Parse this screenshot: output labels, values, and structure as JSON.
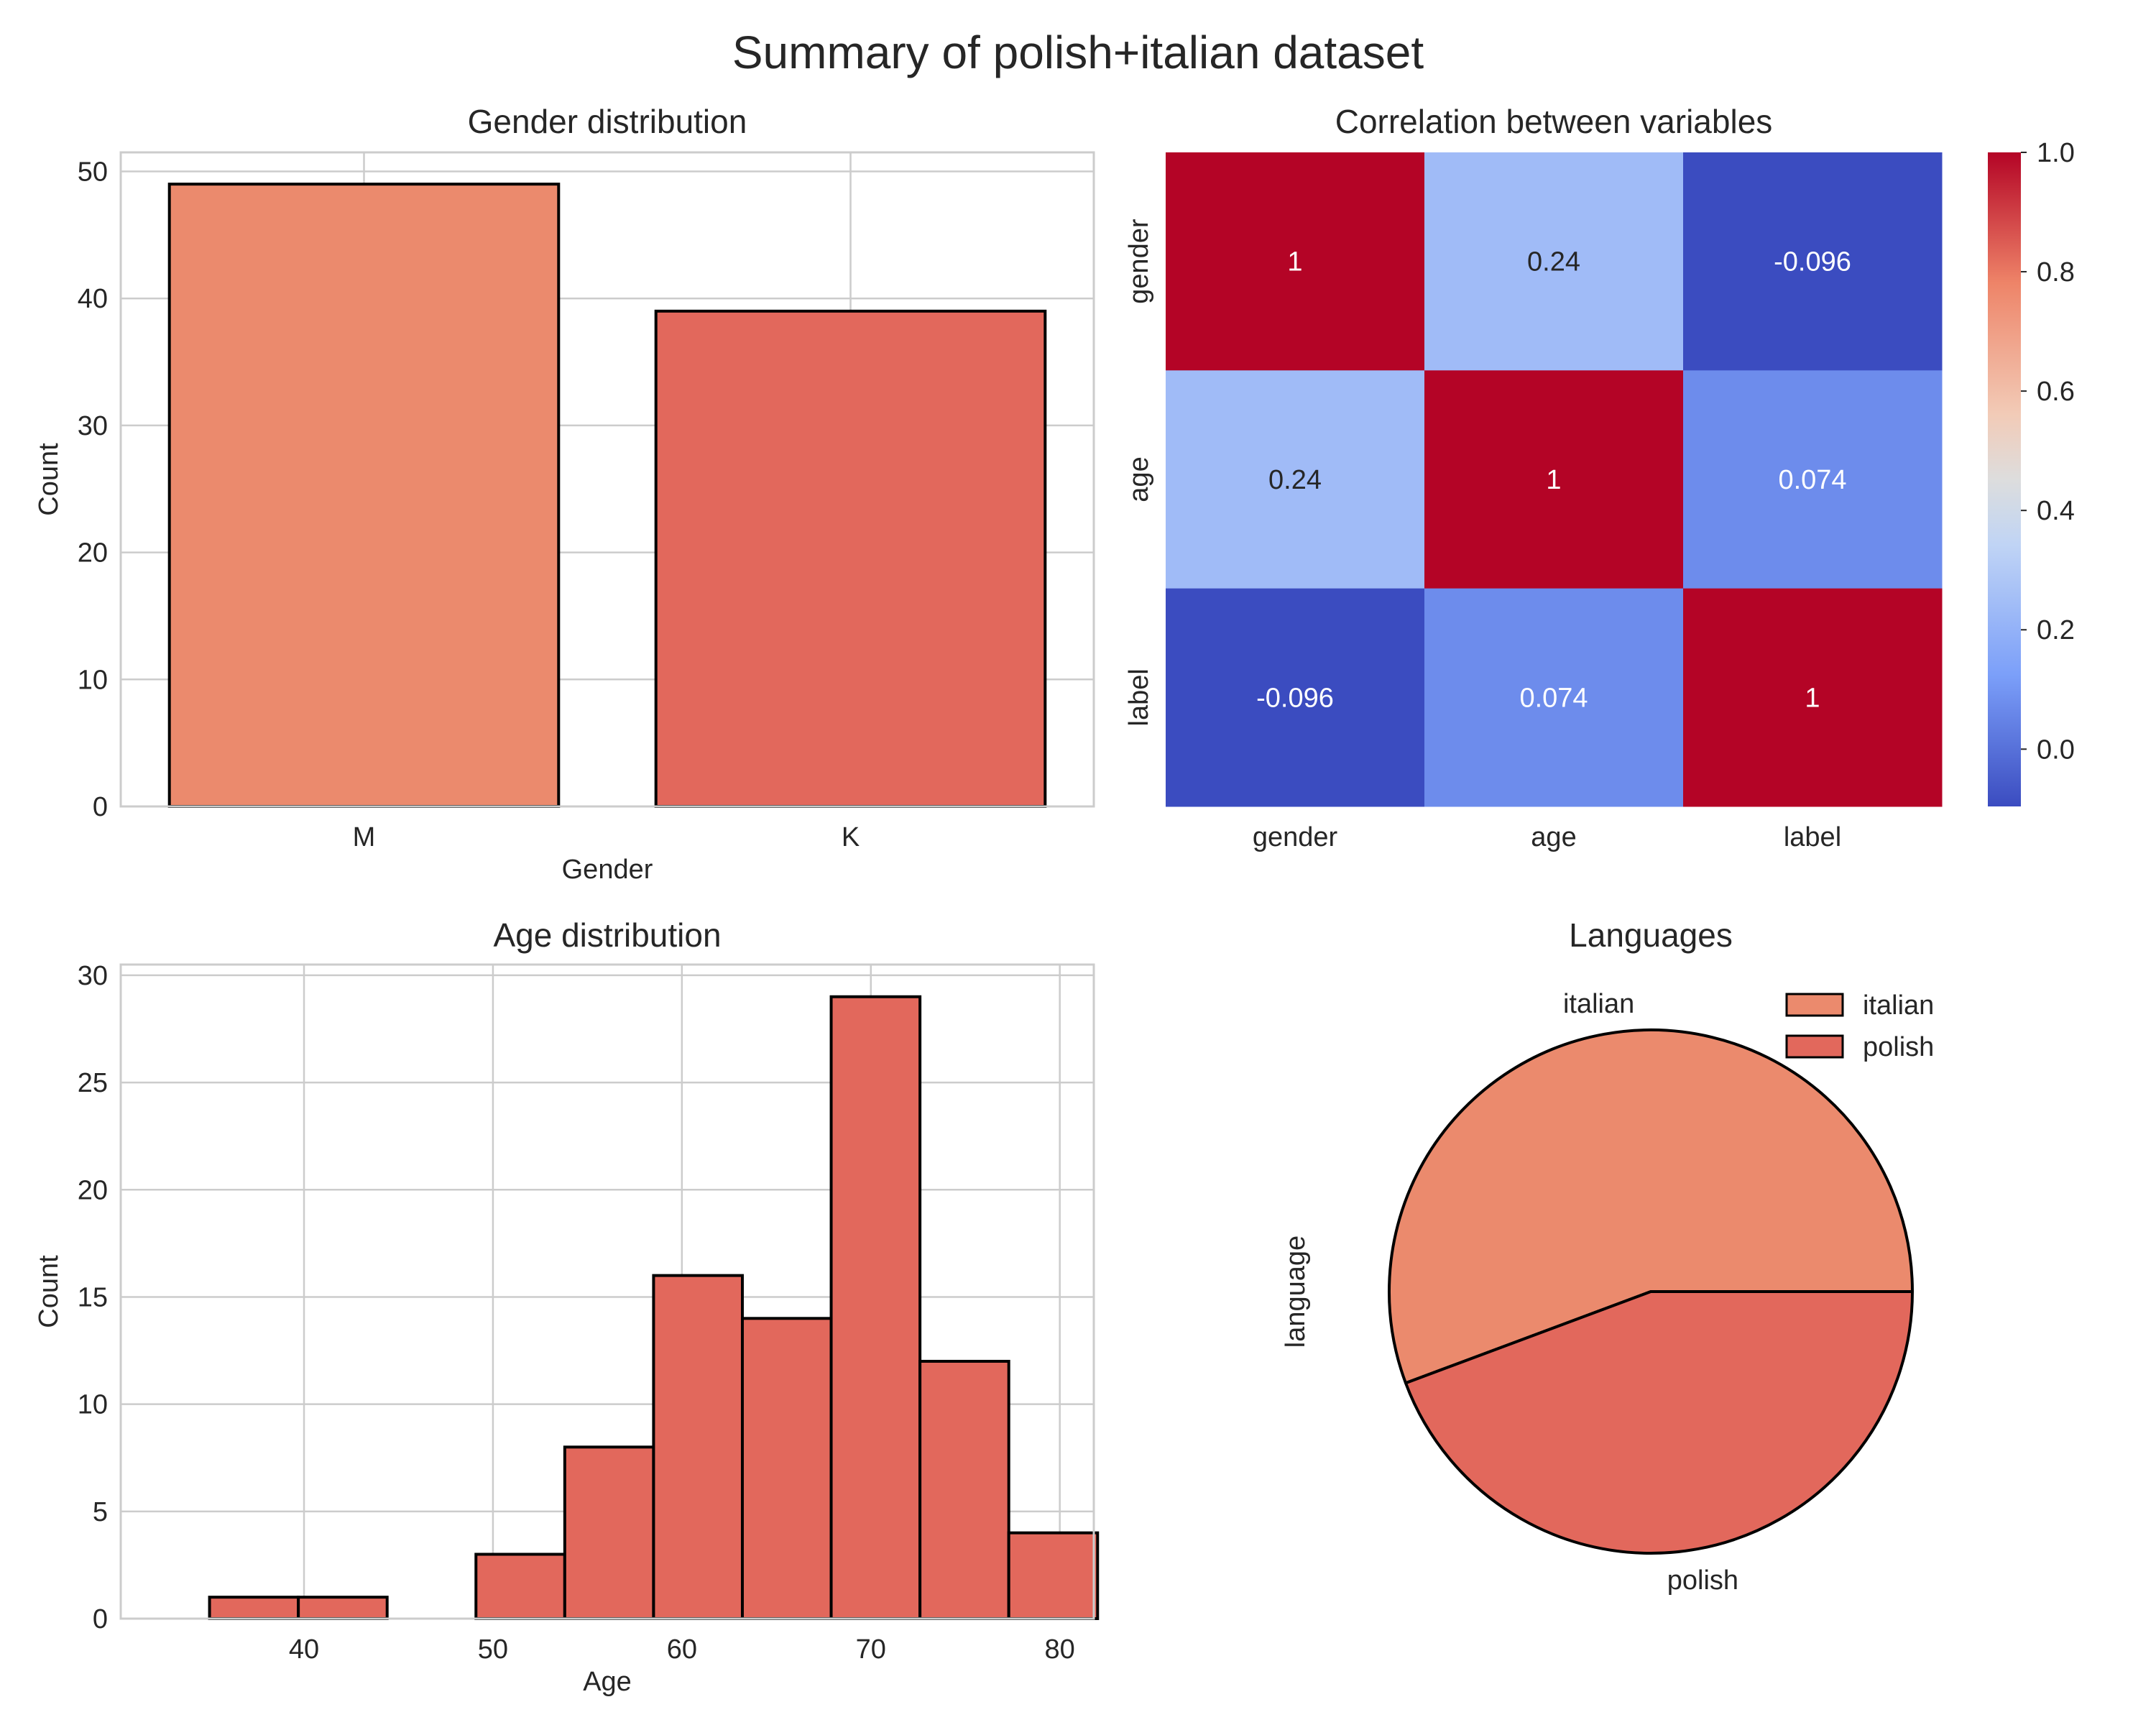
{
  "title": "Summary of polish+italian dataset",
  "colors": {
    "italian": "#EB8A6D",
    "polish": "#E2685C",
    "gender_M": "#EB8A6D",
    "gender_K": "#E2685C",
    "edge": "#000000"
  },
  "chart_data": [
    {
      "type": "bar",
      "title": "Gender distribution",
      "xlabel": "Gender",
      "ylabel": "Count",
      "categories": [
        "M",
        "K"
      ],
      "values": [
        49,
        39
      ],
      "ylim": [
        0,
        51.5
      ],
      "yticks": [
        0,
        10,
        20,
        30,
        40,
        50
      ],
      "grid": true
    },
    {
      "type": "heatmap",
      "title": "Correlation between variables",
      "rows": [
        "gender",
        "age",
        "label"
      ],
      "cols": [
        "gender",
        "age",
        "label"
      ],
      "values": [
        [
          1,
          0.24,
          -0.096
        ],
        [
          0.24,
          1,
          0.074
        ],
        [
          -0.096,
          0.074,
          1
        ]
      ],
      "labels": [
        [
          "1",
          "0.24",
          "-0.096"
        ],
        [
          "0.24",
          "1",
          "0.074"
        ],
        [
          "-0.096",
          "0.074",
          "1"
        ]
      ],
      "colormap": "coolwarm",
      "colorbar": {
        "range": [
          -0.096,
          1.0
        ],
        "ticks": [
          "0.0",
          "0.2",
          "0.4",
          "0.6",
          "0.8",
          "1.0"
        ]
      }
    },
    {
      "type": "bar",
      "subtype": "histogram",
      "title": "Age distribution",
      "xlabel": "Age",
      "ylabel": "Count",
      "bin_edges": [
        35,
        39.7,
        44.4,
        49.1,
        53.8,
        58.5,
        63.2,
        67.9,
        72.6,
        77.3,
        82
      ],
      "values": [
        1,
        1,
        0,
        3,
        8,
        16,
        14,
        29,
        12,
        4
      ],
      "xlim": [
        30.3,
        81.8
      ],
      "ylim": [
        0,
        30.5
      ],
      "xticks": [
        40,
        50,
        60,
        70,
        80
      ],
      "yticks": [
        0,
        5,
        10,
        15,
        20,
        25,
        30
      ],
      "grid": true
    },
    {
      "type": "pie",
      "title": "Languages",
      "ylabel": "language",
      "labels": [
        "italian",
        "polish"
      ],
      "values": [
        49,
        39
      ],
      "legend": "top-right"
    }
  ]
}
